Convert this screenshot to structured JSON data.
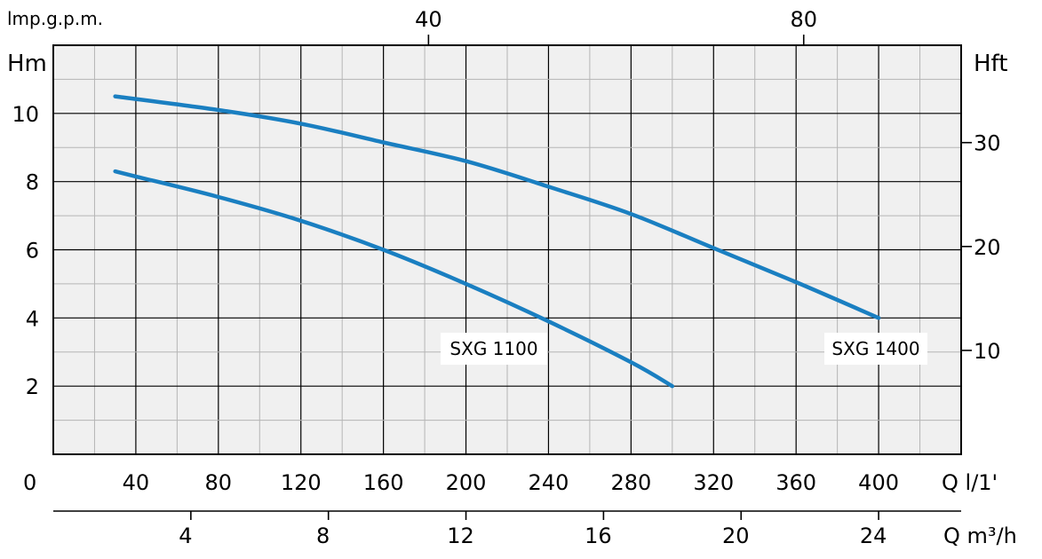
{
  "chart_data": {
    "type": "line",
    "title": "",
    "top_axis": {
      "label": "lmp.g.p.m.",
      "ticks": [
        "40",
        "80"
      ]
    },
    "left_axis": {
      "label": "Hm",
      "ticks": [
        "2",
        "4",
        "6",
        "8",
        "10"
      ],
      "range": [
        0,
        12
      ]
    },
    "right_axis": {
      "label": "Hft",
      "ticks": [
        "10",
        "20",
        "30"
      ]
    },
    "bottom_axis": {
      "label": "Q l/1'",
      "origin_label": "0",
      "ticks": [
        "40",
        "80",
        "120",
        "160",
        "200",
        "240",
        "280",
        "320",
        "360",
        "400"
      ],
      "range": [
        0,
        440
      ]
    },
    "secondary_bottom_axis": {
      "label": "Q m³/h",
      "ticks": [
        "4",
        "8",
        "12",
        "16",
        "20",
        "24"
      ]
    },
    "series": [
      {
        "name": "SXG 1100",
        "color": "#1a7fc1",
        "x": [
          30,
          40,
          80,
          120,
          160,
          200,
          240,
          280,
          300
        ],
        "y": [
          8.3,
          8.15,
          7.55,
          6.85,
          6.0,
          5.0,
          3.9,
          2.7,
          2.0
        ]
      },
      {
        "name": "SXG 1400",
        "color": "#1a7fc1",
        "x": [
          30,
          80,
          120,
          160,
          200,
          240,
          280,
          320,
          360,
          400
        ],
        "y": [
          10.5,
          10.1,
          9.7,
          9.15,
          8.6,
          7.85,
          7.05,
          6.05,
          5.05,
          4.0
        ]
      }
    ],
    "grid": true
  }
}
